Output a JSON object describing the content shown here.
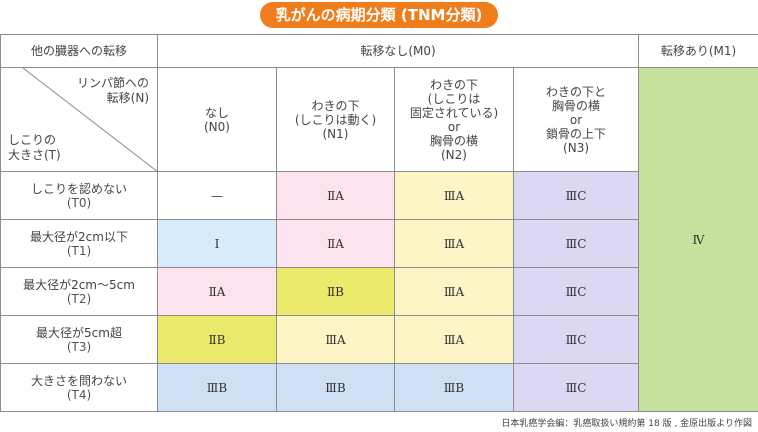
{
  "title": "乳がんの病期分類 (TNM分類)",
  "header": {
    "metastasis_label": "他の臓器への転移",
    "m0": "転移なし(M0)",
    "m1": "転移あり(M1)"
  },
  "corner": {
    "top_right": [
      "リンパ節への",
      "転移(N)"
    ],
    "bottom_left": [
      "しこりの",
      "大きさ(T)"
    ]
  },
  "n_columns": [
    {
      "lines": [
        "なし",
        "(N0)"
      ]
    },
    {
      "lines": [
        "わきの下",
        "(しこりは動く)",
        "(N1)"
      ]
    },
    {
      "lines": [
        "わきの下",
        "(しこりは",
        "固定されている)",
        "or",
        "胸骨の横",
        "(N2)"
      ]
    },
    {
      "lines": [
        "わきの下と",
        "胸骨の横",
        "or",
        "鎖骨の上下",
        "(N3)"
      ]
    }
  ],
  "rows": [
    {
      "label": "しこりを認めない",
      "code": "(T0)",
      "cells": [
        "—",
        "ⅡA",
        "ⅢA",
        "ⅢC"
      ]
    },
    {
      "label": "最大径が2cm以下",
      "code": "(T1)",
      "cells": [
        "Ⅰ",
        "ⅡA",
        "ⅢA",
        "ⅢC"
      ]
    },
    {
      "label": "最大径が2cm〜5cm",
      "code": "(T2)",
      "cells": [
        "ⅡA",
        "ⅡB",
        "ⅢA",
        "ⅢC"
      ]
    },
    {
      "label": "最大径が5cm超",
      "code": "(T3)",
      "cells": [
        "ⅡB",
        "ⅢA",
        "ⅢA",
        "ⅢC"
      ]
    },
    {
      "label": "大きさを問わない",
      "code": "(T4)",
      "cells": [
        "ⅢB",
        "ⅢB",
        "ⅢB",
        "ⅢC"
      ]
    }
  ],
  "m1_stage": "Ⅳ",
  "colors": {
    "title_bg": "#f07d1c",
    "m1": "#c6e19c",
    "stage_IIIC": "#dcd8f4",
    "stage_IIIA": "#fdf5c5",
    "stage_IIA": "#fce3ee",
    "stage_IIB_yellow": "#ecea6c",
    "stage_I": "#d7ebfa",
    "stage_IIIB": "#cfe0f5"
  },
  "footnote": "日本乳癌学会編：乳癌取扱い規約第 18 版 , 金原出版より作図"
}
